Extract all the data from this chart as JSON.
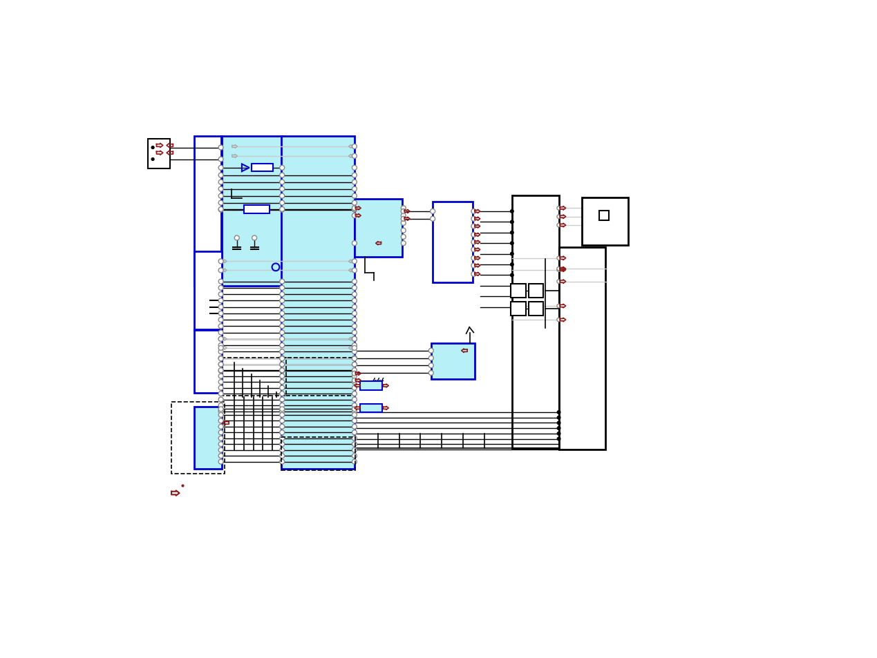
{
  "bg": "#ffffff",
  "cyan": "#b8f0f8",
  "blue": "#0000cc",
  "dred": "#8b1a1a",
  "blk": "#000000",
  "gray": "#aaaaaa",
  "lgray": "#cccccc"
}
